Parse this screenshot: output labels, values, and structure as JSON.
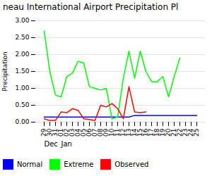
{
  "chart_data": {
    "type": "line",
    "title": "neau International Airport Precipitation Pl",
    "ylabel": "Precipitation",
    "categories": [
      "29",
      "30",
      "31",
      "01",
      "02",
      "03",
      "04",
      "05",
      "06",
      "07",
      "08",
      "09",
      "10",
      "11",
      "12",
      "13",
      "14",
      "15",
      "16",
      "17",
      "18",
      "19",
      "20",
      "21",
      "22",
      "23",
      "24",
      "25"
    ],
    "series": [
      {
        "name": "Normal",
        "color": "#0000ff",
        "values": [
          0.15,
          0.15,
          0.15,
          0.15,
          0.15,
          0.15,
          0.15,
          0.15,
          0.15,
          0.15,
          0.15,
          0.15,
          0.15,
          0.15,
          0.15,
          0.15,
          0.2,
          0.2,
          0.2,
          0.2,
          0.2,
          0.2,
          0.2,
          0.2,
          0.2,
          0.2,
          0.2,
          0.2
        ]
      },
      {
        "name": "Extreme",
        "color": "#00ff00",
        "values": [
          2.7,
          1.5,
          0.8,
          0.75,
          1.35,
          1.45,
          1.8,
          1.75,
          1.05,
          1.0,
          0.95,
          1.0,
          0.1,
          0.15,
          1.3,
          2.1,
          1.3,
          2.1,
          1.5,
          1.2,
          1.2,
          1.35,
          0.75,
          1.35,
          1.9,
          null,
          null,
          null
        ]
      },
      {
        "name": "Observed",
        "color": "#ff0000",
        "values": [
          0.1,
          0.05,
          0.05,
          0.3,
          0.28,
          0.4,
          0.35,
          0.1,
          0.08,
          0.05,
          0.5,
          0.45,
          0.55,
          0.4,
          0.1,
          1.05,
          0.3,
          0.28,
          0.3,
          null,
          null,
          null,
          null,
          null,
          null,
          null,
          null,
          null
        ]
      }
    ],
    "annotations": [
      {
        "text": "Dec",
        "x": "29"
      },
      {
        "text": "Jan",
        "x": "01"
      }
    ],
    "ylim": [
      0.0,
      3.0
    ],
    "yticks": [
      {
        "value": 0.0,
        "label": "0.00"
      },
      {
        "value": 0.5,
        "label": "0.50"
      },
      {
        "value": 1.0,
        "label": "1.00"
      },
      {
        "value": 1.5,
        "label": "1.50"
      },
      {
        "value": 2.0,
        "label": "2.00"
      },
      {
        "value": 2.5,
        "label": "2.50"
      },
      {
        "value": 3.0,
        "label": "3.00"
      }
    ],
    "grid": true,
    "legend": "bottom"
  }
}
